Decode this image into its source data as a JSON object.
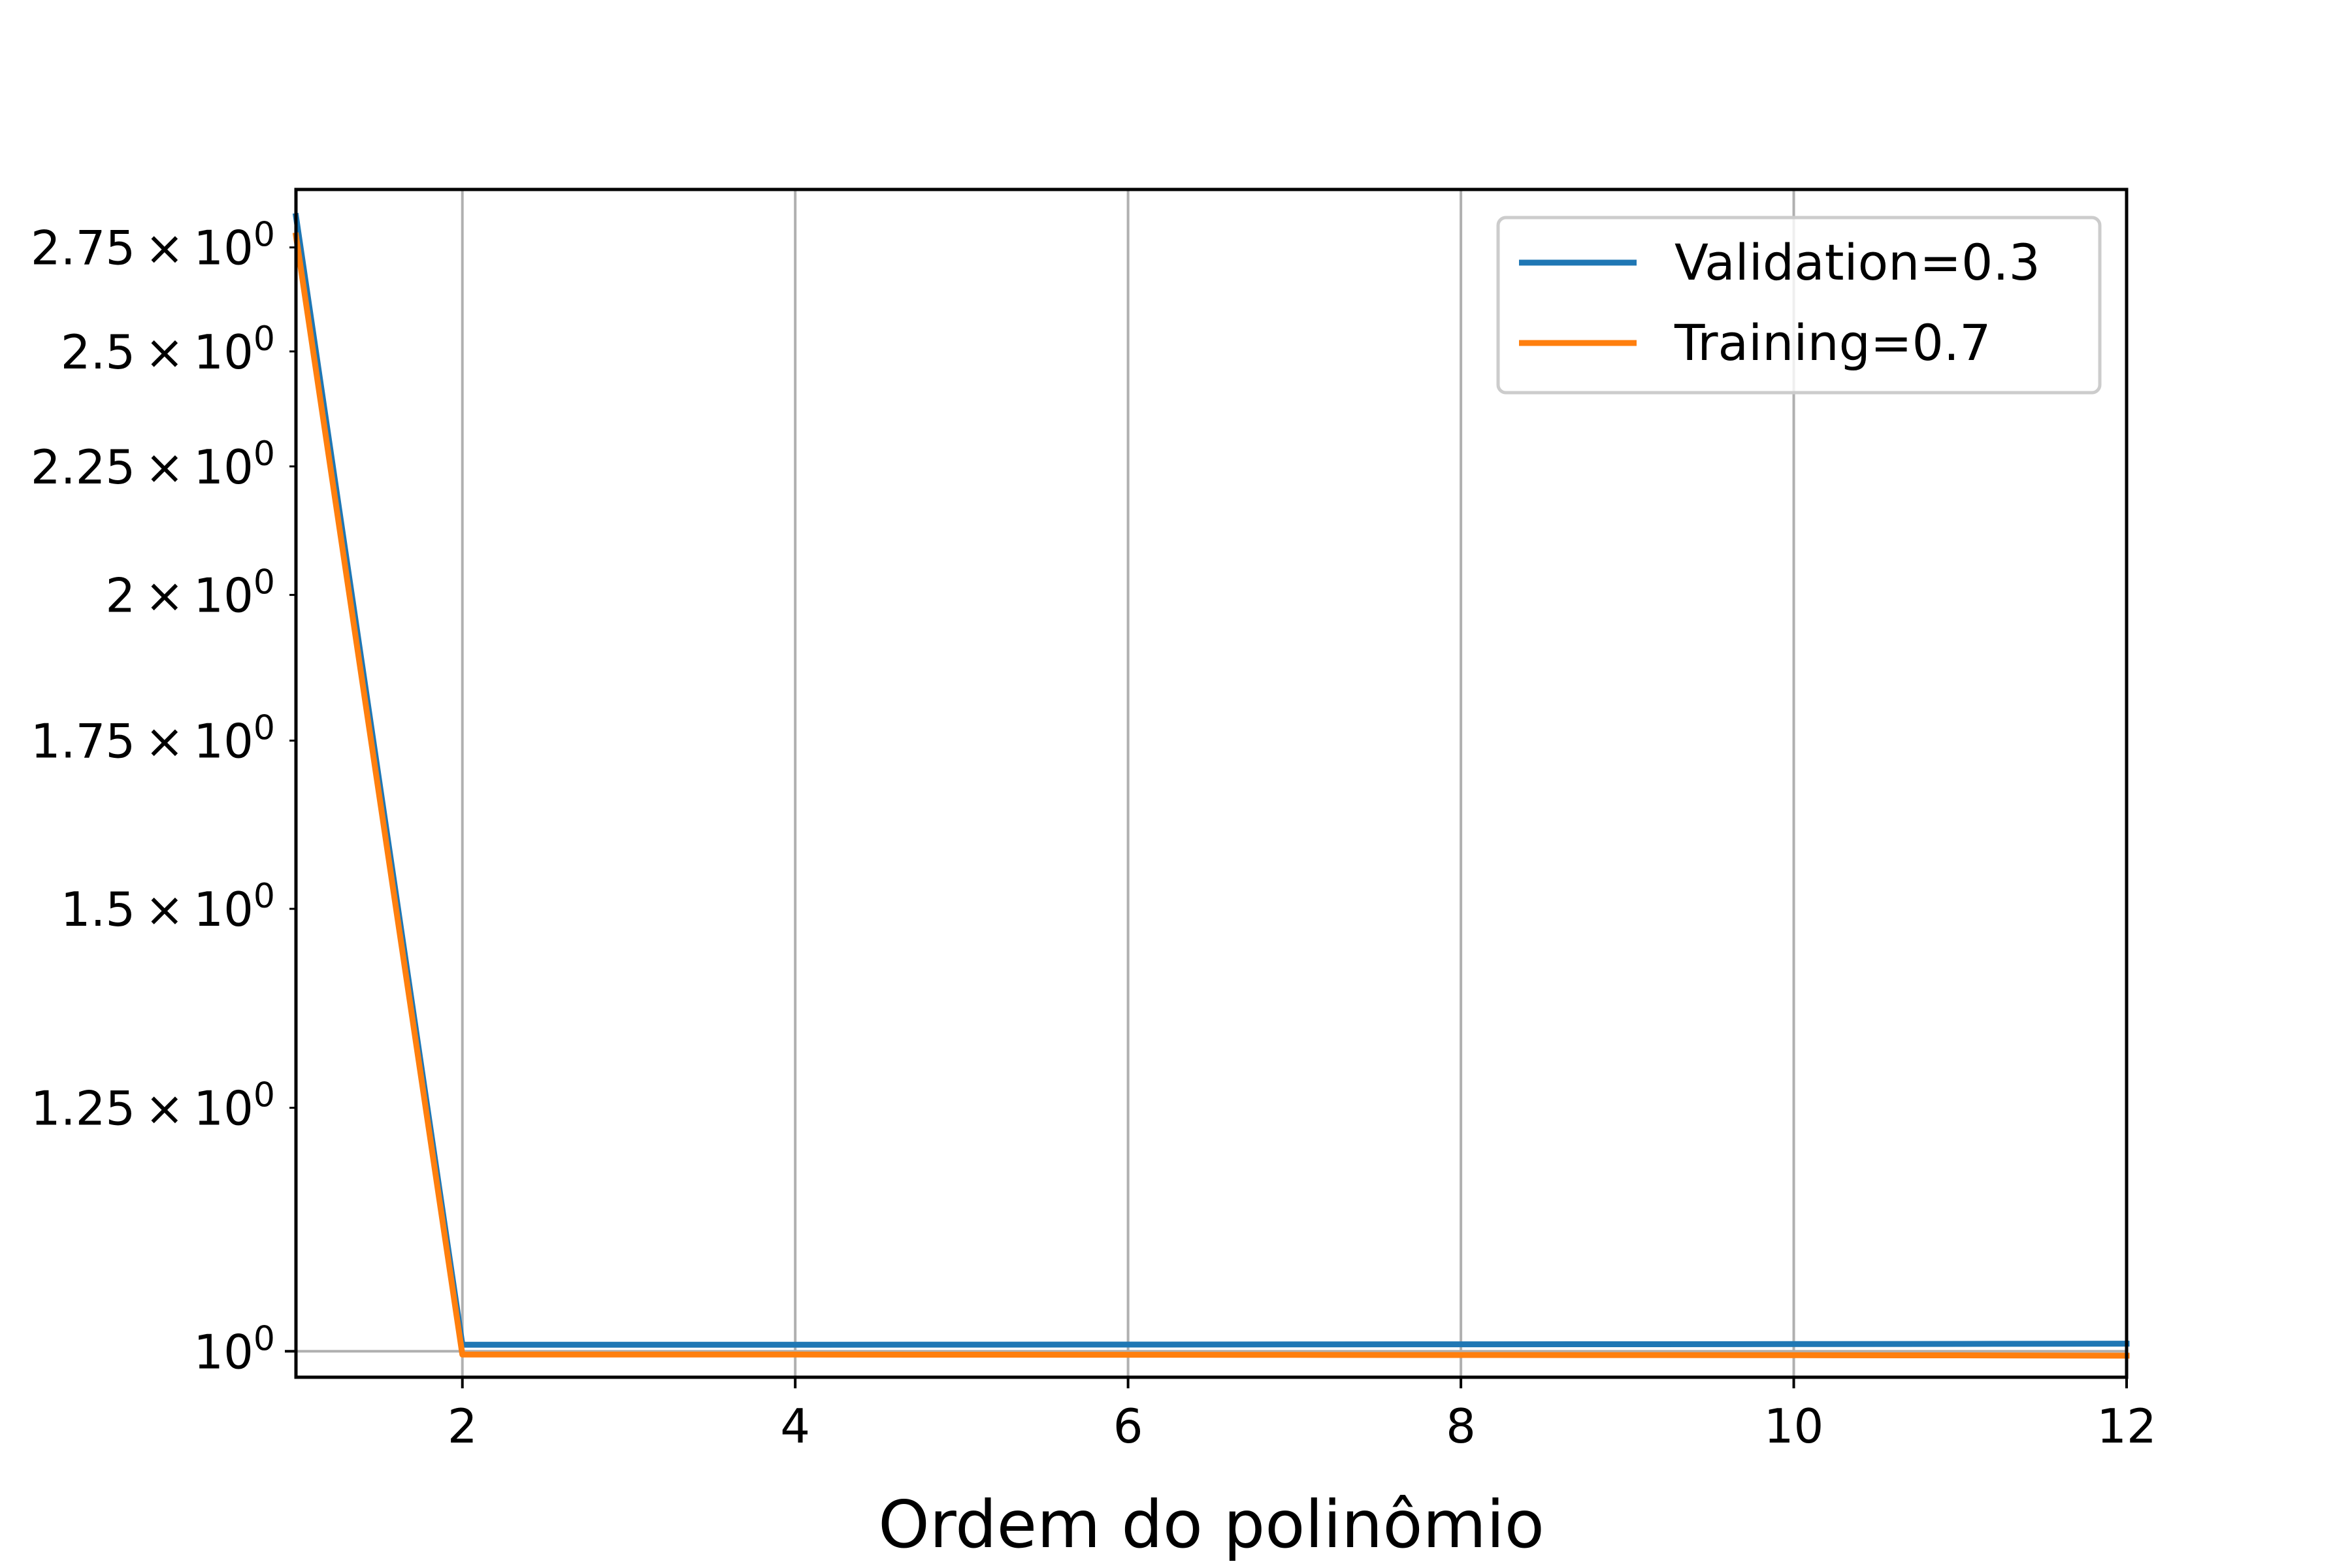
{
  "chart_data": {
    "type": "line",
    "xlabel": "Ordem do polinômio",
    "ylabel": "",
    "title": "",
    "xlim": [
      1,
      12
    ],
    "ylim": [
      0.9765,
      2.9
    ],
    "yscale": "log",
    "grid": true,
    "legend_position": "top-right",
    "x_ticks": [
      2,
      4,
      6,
      8,
      10,
      12
    ],
    "x_tick_labels": [
      "2",
      "4",
      "6",
      "8",
      "10",
      "12"
    ],
    "y_ticks": [
      1.0,
      1.25,
      1.5,
      1.75,
      2.0,
      2.25,
      2.5,
      2.75
    ],
    "y_tick_labels": [
      {
        "mantissa": "",
        "exp": "0"
      },
      {
        "mantissa": "1.25",
        "exp": "0"
      },
      {
        "mantissa": "1.5",
        "exp": "0"
      },
      {
        "mantissa": "1.75",
        "exp": "0"
      },
      {
        "mantissa": "2",
        "exp": "0"
      },
      {
        "mantissa": "2.25",
        "exp": "0"
      },
      {
        "mantissa": "2.5",
        "exp": "0"
      },
      {
        "mantissa": "2.75",
        "exp": "0"
      }
    ],
    "x": [
      1,
      2,
      3,
      4,
      5,
      6,
      7,
      8,
      9,
      10,
      11,
      12
    ],
    "series": [
      {
        "name": "Validation=0.3",
        "color": "#1f77b4",
        "values": [
          2.83,
          1.006,
          1.006,
          1.006,
          1.0061,
          1.0062,
          1.0063,
          1.0064,
          1.0065,
          1.0066,
          1.0068,
          1.007
        ]
      },
      {
        "name": "Training=0.7",
        "color": "#ff7f0e",
        "values": [
          2.78,
          0.997,
          0.997,
          0.997,
          0.9969,
          0.9968,
          0.9967,
          0.9966,
          0.9965,
          0.9964,
          0.9963,
          0.996
        ]
      }
    ]
  }
}
